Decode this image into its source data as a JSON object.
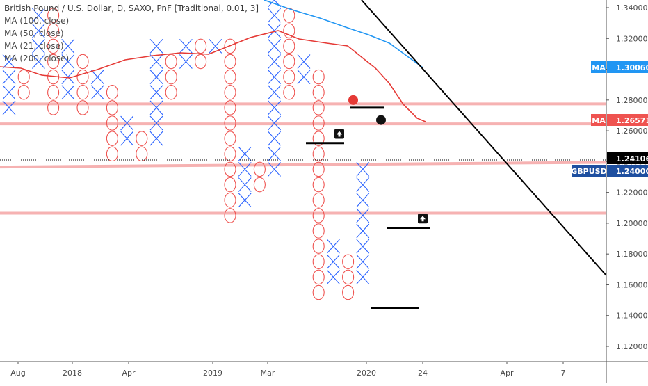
{
  "chart_data": {
    "type": "point-and-figure",
    "title": "British Pound / U.S. Dollar, D, SAXO, PnF [Traditional, 0.01, 3]",
    "indicators": [
      "MA (100, close)",
      "MA (50, close)",
      "MA (21, close)",
      "MA (200, close)"
    ],
    "ylim": [
      1.11,
      1.345
    ],
    "y_ticks": [
      1.34,
      1.32,
      1.3,
      1.28,
      1.26,
      1.24,
      1.22,
      1.2,
      1.18,
      1.16,
      1.14,
      1.12
    ],
    "x_tick_labels": [
      "Aug",
      "2018",
      "Apr",
      "2019",
      "Mar",
      "2020",
      "24",
      "Apr",
      "7"
    ],
    "box_size": 0.01,
    "reversal": 3,
    "columns": [
      {
        "type": "X",
        "low": 1.27,
        "high": 1.31
      },
      {
        "type": "O",
        "low": 1.28,
        "high": 1.3
      },
      {
        "type": "X",
        "low": 1.3,
        "high": 1.34
      },
      {
        "type": "O",
        "low": 1.27,
        "high": 1.34
      },
      {
        "type": "X",
        "low": 1.28,
        "high": 1.32
      },
      {
        "type": "O",
        "low": 1.27,
        "high": 1.31
      },
      {
        "type": "X",
        "low": 1.28,
        "high": 1.3
      },
      {
        "type": "O",
        "low": 1.24,
        "high": 1.29
      },
      {
        "type": "X",
        "low": 1.25,
        "high": 1.27
      },
      {
        "type": "O",
        "low": 1.24,
        "high": 1.26
      },
      {
        "type": "X",
        "low": 1.25,
        "high": 1.32
      },
      {
        "type": "O",
        "low": 1.28,
        "high": 1.31
      },
      {
        "type": "X",
        "low": 1.3,
        "high": 1.32
      },
      {
        "type": "O",
        "low": 1.3,
        "high": 1.32
      },
      {
        "type": "X",
        "low": 1.31,
        "high": 1.32
      },
      {
        "type": "O",
        "low": 1.2,
        "high": 1.32
      },
      {
        "type": "X",
        "low": 1.21,
        "high": 1.25
      },
      {
        "type": "O",
        "low": 1.22,
        "high": 1.24
      },
      {
        "type": "X",
        "low": 1.23,
        "high": 1.35
      },
      {
        "type": "O",
        "low": 1.28,
        "high": 1.34
      },
      {
        "type": "X",
        "low": 1.29,
        "high": 1.31
      },
      {
        "type": "O",
        "low": 1.15,
        "high": 1.3
      },
      {
        "type": "X",
        "low": 1.16,
        "high": 1.19
      },
      {
        "type": "O",
        "low": 1.15,
        "high": 1.18
      },
      {
        "type": "X",
        "low": 1.16,
        "high": 1.24
      }
    ],
    "moving_averages": [
      {
        "name": "MA (100, close)",
        "color": "#e53935",
        "label": "1.26571"
      },
      {
        "name": "MA (50, close)",
        "color": "#2196f3",
        "label": "1.30060"
      }
    ],
    "horizontal_levels": [
      1.2775,
      1.2645,
      1.2065
    ],
    "support_level_sloped": [
      1.2365,
      1.2395
    ],
    "dotted_last_line": 1.24106,
    "trendline": {
      "from": [
        1.345,
        "2019 late"
      ],
      "to": [
        1.165,
        "right edge"
      ]
    },
    "markers": [
      {
        "kind": "red-dot"
      },
      {
        "kind": "black-dot"
      },
      {
        "kind": "buy-signal"
      },
      {
        "kind": "buy-signal"
      }
    ],
    "price_labels": [
      {
        "text": "1.30060",
        "tag": "MA",
        "color": "#2196f3"
      },
      {
        "text": "1.26571",
        "tag": "MA",
        "color": "#ef5350"
      },
      {
        "text": "1.24106",
        "tag": "",
        "color": "#000000"
      },
      {
        "text": "1.24000",
        "tag": "GBPUSD",
        "color": "#1e4fa0"
      }
    ]
  },
  "legend": {
    "title": "British Pound / U.S. Dollar, D, SAXO, PnF [Traditional, 0.01, 3]",
    "lines": [
      "MA (100, close)",
      "MA (50, close)",
      "MA (21, close)",
      "MA (200, close)"
    ]
  },
  "colors": {
    "x_mark": "#2962ff",
    "o_mark": "#ef5350",
    "level_line": "#f5a5a5",
    "axis_text": "#4a4a4a"
  }
}
